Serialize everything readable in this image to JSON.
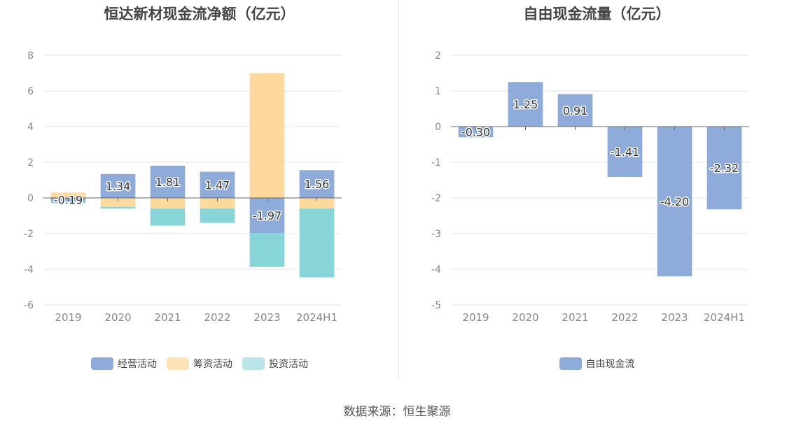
{
  "source_text": "数据来源：恒生聚源",
  "charts": [
    {
      "id": "left",
      "title": "恒达新材现金流净额（亿元）",
      "legend": [
        {
          "name": "经营活动",
          "color": "#8eabda"
        },
        {
          "name": "筹资活动",
          "color": "#fde4b8"
        },
        {
          "name": "投资活动",
          "color": "#b8e6e8"
        }
      ]
    },
    {
      "id": "right",
      "title": "自由现金流量（亿元）",
      "legend": [
        {
          "name": "自由现金流",
          "color": "#8eabda"
        }
      ]
    }
  ],
  "chart_data": [
    {
      "type": "bar",
      "stacked": true,
      "title": "恒达新材现金流净额（亿元）",
      "categories": [
        "2019",
        "2020",
        "2021",
        "2022",
        "2023",
        "2024H1"
      ],
      "ylim": [
        -6,
        8
      ],
      "yticks": [
        -6,
        -4,
        -2,
        0,
        2,
        4,
        6,
        8
      ],
      "grid": true,
      "legend_position": "bottom",
      "series": [
        {
          "name": "经营活动",
          "color": "#8eabda",
          "label_color": "#ffffff",
          "values": [
            -0.19,
            1.34,
            1.81,
            1.47,
            -1.97,
            1.56
          ]
        },
        {
          "name": "筹资活动",
          "color": "#fdd99e",
          "values": [
            0.3,
            -0.5,
            -0.6,
            -0.6,
            7.0,
            -0.6
          ]
        },
        {
          "name": "投资活动",
          "color": "#87d5d9",
          "values": [
            -0.1,
            -0.1,
            -0.95,
            -0.8,
            -1.9,
            -3.85
          ]
        }
      ],
      "data_labels": [
        "-0.19",
        "1.34",
        "1.81",
        "1.47",
        "-1.97",
        "1.56"
      ]
    },
    {
      "type": "bar",
      "title": "自由现金流量（亿元）",
      "categories": [
        "2019",
        "2020",
        "2021",
        "2022",
        "2023",
        "2024H1"
      ],
      "ylim": [
        -5,
        2
      ],
      "yticks": [
        -5,
        -4,
        -3,
        -2,
        -1,
        0,
        1,
        2
      ],
      "grid": true,
      "legend_position": "bottom",
      "series": [
        {
          "name": "自由现金流",
          "color": "#8eabda",
          "values": [
            -0.3,
            1.25,
            0.91,
            -1.41,
            -4.2,
            -2.32
          ]
        }
      ],
      "data_labels": [
        "-0.30",
        "1.25",
        "0.91",
        "-1.41",
        "-4.20",
        "-2.32"
      ]
    }
  ]
}
